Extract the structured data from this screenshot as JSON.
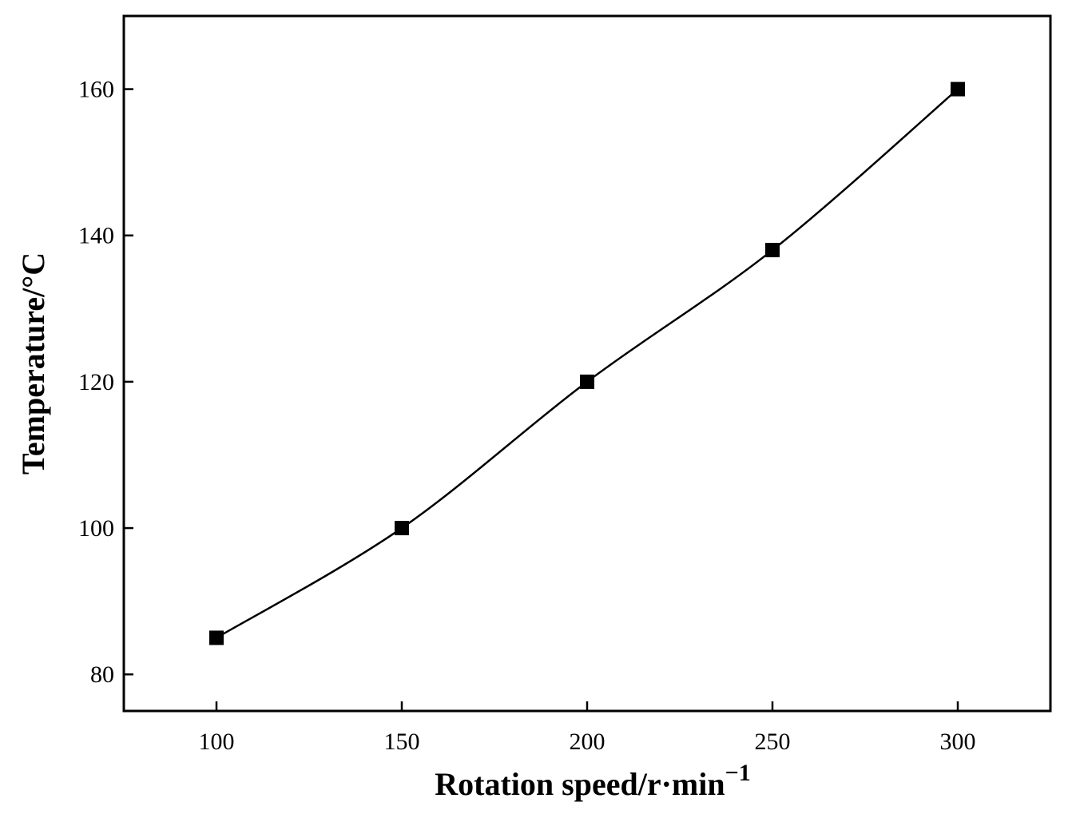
{
  "chart_data": {
    "type": "line",
    "x": [
      100,
      150,
      200,
      250,
      300
    ],
    "series": [
      {
        "values": [
          85,
          100,
          120,
          138,
          160
        ],
        "marker": "square",
        "color": "#000000"
      }
    ],
    "xlabel": "Rotation speed/r·min",
    "xlabel_superscript": "−1",
    "ylabel": "Temperature/°C",
    "xlim": [
      75,
      325
    ],
    "ylim": [
      75,
      170
    ],
    "xticks": [
      100,
      150,
      200,
      250,
      300
    ],
    "yticks": [
      80,
      100,
      120,
      140,
      160
    ],
    "grid": false,
    "legend": "none"
  }
}
